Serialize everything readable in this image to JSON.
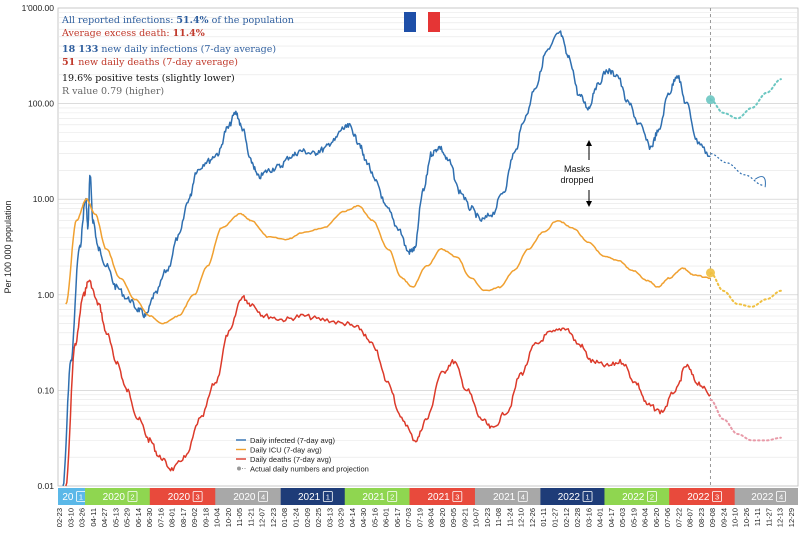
{
  "info": {
    "line1_prefix": "All reported infections: ",
    "line1_value": "51.4%",
    "line1_suffix": " of the population",
    "line2_prefix": "Average excess death: ",
    "line2_value": "11.4%",
    "line3_value": "18 133",
    "line3_suffix": " new daily infections (7-day average)",
    "line4_value": "51",
    "line4_suffix": " new daily deaths (7-day average)",
    "line5": "19.6% positive tests (slightly lower)",
    "line6": "R value 0.79 (higher)"
  },
  "annotation": {
    "line1": "Masks",
    "line2": "dropped"
  },
  "flag_icon": "france-flag-icon",
  "colors": {
    "infected": "#2f6fb0",
    "icu": "#f0a030",
    "deaths": "#dc3a2a",
    "projection_infected": "#6cc7c2",
    "projection_icu": "#f0c040",
    "projection_deaths": "#e89aa8",
    "info_blue": "#2e5e9e",
    "info_red": "#c0392b"
  },
  "chart_data": {
    "type": "line",
    "yscale": "log",
    "ylabel": "Per 100 000 population",
    "ylim": [
      0.01,
      1000
    ],
    "yticks": [
      {
        "value": 0.01,
        "label": "0.01"
      },
      {
        "value": 0.1,
        "label": "0.10"
      },
      {
        "value": 1,
        "label": "1.00"
      },
      {
        "value": 10,
        "label": "10.00"
      },
      {
        "value": 100,
        "label": "100.00"
      },
      {
        "value": 1000,
        "label": "1'000.00"
      }
    ],
    "x_start": "2020-02-23",
    "x_end": "2022-12-29",
    "today": "2022-08-28",
    "xtick_labels": [
      "02-23",
      "03-10",
      "03-26",
      "04-11",
      "04-27",
      "05-13",
      "05-29",
      "06-14",
      "06-30",
      "07-16",
      "08-01",
      "08-17",
      "09-02",
      "09-18",
      "10-04",
      "10-20",
      "11-05",
      "11-21",
      "12-07",
      "12-23",
      "01-08",
      "01-24",
      "02-09",
      "02-25",
      "03-13",
      "03-29",
      "04-14",
      "04-30",
      "05-16",
      "06-01",
      "06-17",
      "07-03",
      "07-19",
      "08-04",
      "08-20",
      "09-05",
      "09-21",
      "10-07",
      "10-23",
      "11-08",
      "11-24",
      "12-10",
      "12-26",
      "01-11",
      "01-27",
      "02-12",
      "02-28",
      "03-16",
      "04-01",
      "04-17",
      "05-03",
      "05-19",
      "06-04",
      "06-20",
      "07-06",
      "07-22",
      "08-07",
      "08-23",
      "09-08",
      "09-24",
      "10-10",
      "10-26",
      "11-11",
      "11-27",
      "12-13",
      "12-29"
    ],
    "quarters": [
      {
        "label": "20",
        "q": "1",
        "start": "2020-02-23",
        "end": "2020-03-31",
        "color": "#5bb8e8"
      },
      {
        "label": "2020",
        "q": "2",
        "start": "2020-04-01",
        "end": "2020-06-30",
        "color": "#8fd650"
      },
      {
        "label": "2020",
        "q": "3",
        "start": "2020-07-01",
        "end": "2020-09-30",
        "color": "#e84a3c"
      },
      {
        "label": "2020",
        "q": "4",
        "start": "2020-10-01",
        "end": "2020-12-31",
        "color": "#a8a8a8"
      },
      {
        "label": "2021",
        "q": "1",
        "start": "2021-01-01",
        "end": "2021-03-31",
        "color": "#1e3c78"
      },
      {
        "label": "2021",
        "q": "2",
        "start": "2021-04-01",
        "end": "2021-06-30",
        "color": "#8fd650"
      },
      {
        "label": "2021",
        "q": "3",
        "start": "2021-07-01",
        "end": "2021-09-30",
        "color": "#e84a3c"
      },
      {
        "label": "2021",
        "q": "4",
        "start": "2021-10-01",
        "end": "2021-12-31",
        "color": "#a8a8a8"
      },
      {
        "label": "2022",
        "q": "1",
        "start": "2022-01-01",
        "end": "2022-03-31",
        "color": "#1e3c78"
      },
      {
        "label": "2022",
        "q": "2",
        "start": "2022-04-01",
        "end": "2022-06-30",
        "color": "#8fd650"
      },
      {
        "label": "2022",
        "q": "3",
        "start": "2022-07-01",
        "end": "2022-09-30",
        "color": "#e84a3c"
      },
      {
        "label": "2022",
        "q": "4",
        "start": "2022-10-01",
        "end": "2022-12-29",
        "color": "#a8a8a8"
      }
    ],
    "legend": [
      {
        "name": "Daily infected (7-day avg)",
        "color": "#2f6fb0"
      },
      {
        "name": "Daily ICU (7-day avg)",
        "color": "#f0a030"
      },
      {
        "name": "Daily deaths (7-day avg)",
        "color": "#dc3a2a"
      },
      {
        "name": "Actual daily numbers and projection",
        "color": "#999999"
      }
    ],
    "series": [
      {
        "name": "Daily infected (7-day avg)",
        "color": "#2f6fb0",
        "points": [
          [
            "2020-03-01",
            0.01
          ],
          [
            "2020-03-12",
            0.2
          ],
          [
            "2020-03-24",
            3
          ],
          [
            "2020-04-02",
            10
          ],
          [
            "2020-04-05",
            5
          ],
          [
            "2020-04-08",
            18
          ],
          [
            "2020-04-12",
            6
          ],
          [
            "2020-04-20",
            3
          ],
          [
            "2020-05-01",
            2
          ],
          [
            "2020-05-15",
            1.2
          ],
          [
            "2020-06-01",
            0.9
          ],
          [
            "2020-06-15",
            0.7
          ],
          [
            "2020-06-25",
            0.6
          ],
          [
            "2020-07-08",
            1.0
          ],
          [
            "2020-07-25",
            1.8
          ],
          [
            "2020-08-10",
            4
          ],
          [
            "2020-08-25",
            10
          ],
          [
            "2020-09-05",
            20
          ],
          [
            "2020-09-20",
            25
          ],
          [
            "2020-10-05",
            30
          ],
          [
            "2020-10-18",
            55
          ],
          [
            "2020-10-30",
            80
          ],
          [
            "2020-11-08",
            55
          ],
          [
            "2020-11-20",
            25
          ],
          [
            "2020-12-01",
            17
          ],
          [
            "2020-12-15",
            20
          ],
          [
            "2020-12-30",
            22
          ],
          [
            "2021-01-15",
            28
          ],
          [
            "2021-01-30",
            32
          ],
          [
            "2021-02-15",
            30
          ],
          [
            "2021-03-01",
            33
          ],
          [
            "2021-03-15",
            40
          ],
          [
            "2021-03-30",
            55
          ],
          [
            "2021-04-08",
            58
          ],
          [
            "2021-04-20",
            40
          ],
          [
            "2021-05-01",
            25
          ],
          [
            "2021-05-15",
            15
          ],
          [
            "2021-05-30",
            8
          ],
          [
            "2021-06-15",
            5
          ],
          [
            "2021-06-30",
            2.8
          ],
          [
            "2021-07-08",
            3
          ],
          [
            "2021-07-20",
            12
          ],
          [
            "2021-08-01",
            30
          ],
          [
            "2021-08-12",
            35
          ],
          [
            "2021-08-25",
            25
          ],
          [
            "2021-09-10",
            12
          ],
          [
            "2021-09-25",
            8
          ],
          [
            "2021-10-10",
            6
          ],
          [
            "2021-10-25",
            7
          ],
          [
            "2021-11-10",
            12
          ],
          [
            "2021-11-25",
            30
          ],
          [
            "2021-12-10",
            70
          ],
          [
            "2021-12-25",
            150
          ],
          [
            "2022-01-10",
            350
          ],
          [
            "2022-01-28",
            550
          ],
          [
            "2022-02-10",
            300
          ],
          [
            "2022-02-25",
            120
          ],
          [
            "2022-03-10",
            90
          ],
          [
            "2022-03-20",
            150
          ],
          [
            "2022-04-05",
            220
          ],
          [
            "2022-04-18",
            200
          ],
          [
            "2022-05-05",
            100
          ],
          [
            "2022-05-20",
            60
          ],
          [
            "2022-06-05",
            35
          ],
          [
            "2022-06-15",
            50
          ],
          [
            "2022-07-01",
            130
          ],
          [
            "2022-07-12",
            200
          ],
          [
            "2022-07-25",
            100
          ],
          [
            "2022-08-10",
            40
          ],
          [
            "2022-08-28",
            28
          ]
        ]
      },
      {
        "name": "Daily ICU (7-day avg)",
        "color": "#f0a030",
        "points": [
          [
            "2020-03-05",
            0.8
          ],
          [
            "2020-03-20",
            6
          ],
          [
            "2020-04-03",
            10
          ],
          [
            "2020-04-15",
            7
          ],
          [
            "2020-05-01",
            3
          ],
          [
            "2020-05-20",
            1.5
          ],
          [
            "2020-06-10",
            0.9
          ],
          [
            "2020-07-01",
            0.6
          ],
          [
            "2020-07-20",
            0.5
          ],
          [
            "2020-08-10",
            0.6
          ],
          [
            "2020-09-01",
            1
          ],
          [
            "2020-09-20",
            2
          ],
          [
            "2020-10-10",
            5
          ],
          [
            "2020-11-05",
            7
          ],
          [
            "2020-11-20",
            6
          ],
          [
            "2020-12-15",
            4
          ],
          [
            "2021-01-10",
            3.8
          ],
          [
            "2021-02-01",
            4.5
          ],
          [
            "2021-03-01",
            5
          ],
          [
            "2021-04-01",
            7.5
          ],
          [
            "2021-04-20",
            8.5
          ],
          [
            "2021-05-10",
            6
          ],
          [
            "2021-06-01",
            3
          ],
          [
            "2021-06-20",
            1.5
          ],
          [
            "2021-07-05",
            1.2
          ],
          [
            "2021-07-25",
            2
          ],
          [
            "2021-08-15",
            3
          ],
          [
            "2021-09-05",
            2.5
          ],
          [
            "2021-09-25",
            1.5
          ],
          [
            "2021-10-15",
            1.1
          ],
          [
            "2021-11-05",
            1.2
          ],
          [
            "2021-11-25",
            1.8
          ],
          [
            "2021-12-15",
            3
          ],
          [
            "2022-01-05",
            4.5
          ],
          [
            "2022-01-25",
            6
          ],
          [
            "2022-02-15",
            5
          ],
          [
            "2022-03-10",
            3.5
          ],
          [
            "2022-04-01",
            2.5
          ],
          [
            "2022-04-20",
            2.3
          ],
          [
            "2022-05-10",
            1.8
          ],
          [
            "2022-06-01",
            1.4
          ],
          [
            "2022-06-15",
            1.2
          ],
          [
            "2022-07-01",
            1.5
          ],
          [
            "2022-07-20",
            1.9
          ],
          [
            "2022-08-05",
            1.6
          ],
          [
            "2022-08-28",
            1.5
          ]
        ]
      },
      {
        "name": "Daily deaths (7-day avg)",
        "color": "#dc3a2a",
        "points": [
          [
            "2020-03-05",
            0.01
          ],
          [
            "2020-03-18",
            0.3
          ],
          [
            "2020-03-30",
            1.0
          ],
          [
            "2020-04-06",
            1.4
          ],
          [
            "2020-04-20",
            0.8
          ],
          [
            "2020-05-01",
            0.4
          ],
          [
            "2020-05-15",
            0.2
          ],
          [
            "2020-05-30",
            0.1
          ],
          [
            "2020-06-15",
            0.05
          ],
          [
            "2020-07-01",
            0.03
          ],
          [
            "2020-07-15",
            0.02
          ],
          [
            "2020-08-01",
            0.015
          ],
          [
            "2020-08-20",
            0.02
          ],
          [
            "2020-09-10",
            0.05
          ],
          [
            "2020-10-01",
            0.12
          ],
          [
            "2020-10-20",
            0.4
          ],
          [
            "2020-11-08",
            0.95
          ],
          [
            "2020-11-20",
            0.8
          ],
          [
            "2020-12-10",
            0.6
          ],
          [
            "2021-01-05",
            0.55
          ],
          [
            "2021-02-01",
            0.6
          ],
          [
            "2021-03-01",
            0.55
          ],
          [
            "2021-04-01",
            0.5
          ],
          [
            "2021-04-20",
            0.45
          ],
          [
            "2021-05-10",
            0.3
          ],
          [
            "2021-06-01",
            0.12
          ],
          [
            "2021-06-20",
            0.05
          ],
          [
            "2021-07-10",
            0.03
          ],
          [
            "2021-07-25",
            0.05
          ],
          [
            "2021-08-15",
            0.15
          ],
          [
            "2021-09-01",
            0.2
          ],
          [
            "2021-09-20",
            0.1
          ],
          [
            "2021-10-10",
            0.05
          ],
          [
            "2021-10-25",
            0.04
          ],
          [
            "2021-11-15",
            0.06
          ],
          [
            "2021-12-05",
            0.15
          ],
          [
            "2021-12-25",
            0.3
          ],
          [
            "2022-01-15",
            0.4
          ],
          [
            "2022-02-05",
            0.45
          ],
          [
            "2022-02-25",
            0.3
          ],
          [
            "2022-03-15",
            0.2
          ],
          [
            "2022-04-05",
            0.18
          ],
          [
            "2022-04-25",
            0.2
          ],
          [
            "2022-05-15",
            0.12
          ],
          [
            "2022-06-01",
            0.07
          ],
          [
            "2022-06-20",
            0.06
          ],
          [
            "2022-07-10",
            0.1
          ],
          [
            "2022-07-25",
            0.18
          ],
          [
            "2022-08-10",
            0.12
          ],
          [
            "2022-08-28",
            0.09
          ]
        ]
      }
    ],
    "projections": [
      {
        "color": "#6cc7c2",
        "points": [
          [
            "2022-08-28",
            110
          ],
          [
            "2022-09-15",
            80
          ],
          [
            "2022-10-05",
            70
          ],
          [
            "2022-10-25",
            90
          ],
          [
            "2022-11-15",
            130
          ],
          [
            "2022-12-05",
            180
          ]
        ]
      },
      {
        "color": "#f0c040",
        "points": [
          [
            "2022-08-28",
            1.7
          ],
          [
            "2022-09-15",
            1.1
          ],
          [
            "2022-10-05",
            0.8
          ],
          [
            "2022-10-25",
            0.75
          ],
          [
            "2022-11-15",
            0.9
          ],
          [
            "2022-12-05",
            1.1
          ]
        ]
      },
      {
        "color": "#e89aa8",
        "points": [
          [
            "2022-08-28",
            0.08
          ],
          [
            "2022-09-15",
            0.05
          ],
          [
            "2022-10-05",
            0.035
          ],
          [
            "2022-10-25",
            0.03
          ],
          [
            "2022-11-15",
            0.03
          ],
          [
            "2022-12-05",
            0.032
          ]
        ]
      }
    ],
    "forecast_arrow": {
      "color": "#2f6fb0",
      "points": [
        [
          "2022-08-28",
          30
        ],
        [
          "2022-09-20",
          24
        ],
        [
          "2022-10-15",
          18
        ],
        [
          "2022-11-10",
          14
        ]
      ]
    },
    "markers": [
      {
        "date": "2022-08-28",
        "value": 110,
        "color": "#6cc7c2"
      },
      {
        "date": "2022-08-28",
        "value": 1.7,
        "color": "#f0c040"
      }
    ]
  }
}
